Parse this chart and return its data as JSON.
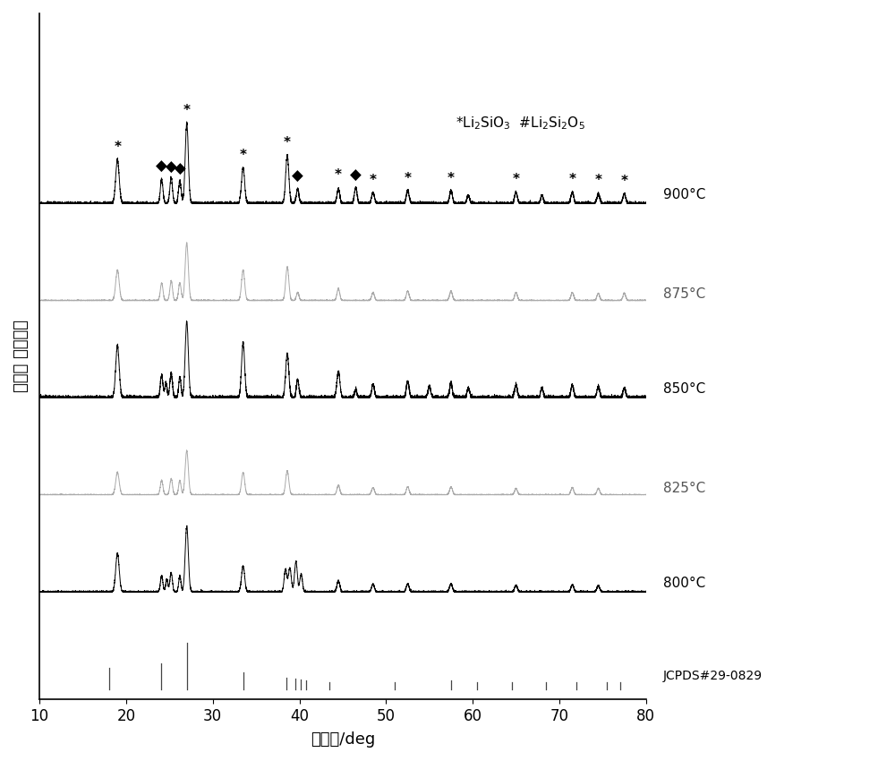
{
  "xlabel": "衍射角/deg",
  "ylabel": "衍射峰 相对强度",
  "xlim": [
    10,
    80
  ],
  "xticks": [
    10,
    20,
    30,
    40,
    50,
    60,
    70,
    80
  ],
  "temperatures": [
    "900°C",
    "875°C",
    "850°C",
    "825°C",
    "800°C",
    "JCPDS#29-0829"
  ],
  "line_colors": [
    "#000000",
    "#aaaaaa",
    "#000000",
    "#aaaaaa",
    "#000000",
    "#555555"
  ],
  "background": "#ffffff",
  "star_positions_900": [
    19.0,
    27.0,
    33.5,
    38.6,
    44.5,
    48.5,
    52.5,
    57.5,
    65.0,
    71.5,
    74.5,
    77.5
  ],
  "diamond_positions_900": [
    24.1,
    25.2,
    26.2,
    39.8,
    46.5
  ]
}
